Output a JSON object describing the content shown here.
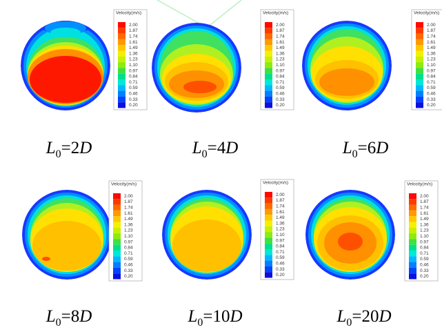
{
  "legend": {
    "title": "Velocity(m/s)",
    "levels": [
      "2.00",
      "1.87",
      "1.74",
      "1.61",
      "1.49",
      "1.36",
      "1.23",
      "1.10",
      "0.97",
      "0.84",
      "0.71",
      "0.59",
      "0.46",
      "0.33",
      "0.20"
    ]
  },
  "panels": [
    {
      "label": {
        "symbol": "L",
        "subscript": "0",
        "equals": "=2",
        "unit": "D"
      }
    },
    {
      "label": {
        "symbol": "L",
        "subscript": "0",
        "equals": "=4",
        "unit": "D"
      }
    },
    {
      "label": {
        "symbol": "L",
        "subscript": "0",
        "equals": "=6",
        "unit": "D"
      }
    },
    {
      "label": {
        "symbol": "L",
        "subscript": "0",
        "equals": "=8",
        "unit": "D"
      }
    },
    {
      "label": {
        "symbol": "L",
        "subscript": "0",
        "equals": "=10",
        "unit": "D"
      }
    },
    {
      "label": {
        "symbol": "L",
        "subscript": "0",
        "equals": "=20",
        "unit": "D"
      }
    }
  ]
}
